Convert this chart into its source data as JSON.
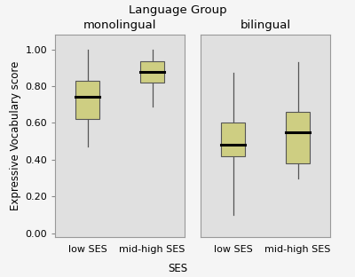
{
  "title": "Language Group",
  "ylabel": "Expressive Vocabulary score",
  "xlabel": "SES",
  "subplots": [
    {
      "label": "monolingual",
      "boxes": [
        {
          "x_label": "low SES",
          "whisker_low": 0.47,
          "q1": 0.62,
          "median": 0.74,
          "q3": 0.83,
          "whisker_high": 1.0
        },
        {
          "x_label": "mid-high SES",
          "whisker_low": 0.69,
          "q1": 0.82,
          "median": 0.875,
          "q3": 0.935,
          "whisker_high": 1.0
        }
      ]
    },
    {
      "label": "bilingual",
      "boxes": [
        {
          "x_label": "low SES",
          "whisker_low": 0.1,
          "q1": 0.42,
          "median": 0.48,
          "q3": 0.6,
          "whisker_high": 0.87
        },
        {
          "x_label": "mid-high SES",
          "whisker_low": 0.3,
          "q1": 0.38,
          "median": 0.55,
          "q3": 0.66,
          "whisker_high": 0.93
        }
      ]
    }
  ],
  "ylim": [
    -0.02,
    1.08
  ],
  "yticks": [
    0.0,
    0.2,
    0.4,
    0.6,
    0.8,
    1.0
  ],
  "box_color_face": "#cece82",
  "box_edge_color": "#555555",
  "median_color": "#000000",
  "whisker_color": "#555555",
  "panel_bg_color": "#e0e0e0",
  "fig_bg_color": "#f5f5f5",
  "box_width": 0.38,
  "x_positions": [
    1,
    2
  ],
  "title_fontsize": 9.5,
  "label_fontsize": 8.5,
  "tick_fontsize": 8,
  "subplot_label_fontsize": 9.5
}
